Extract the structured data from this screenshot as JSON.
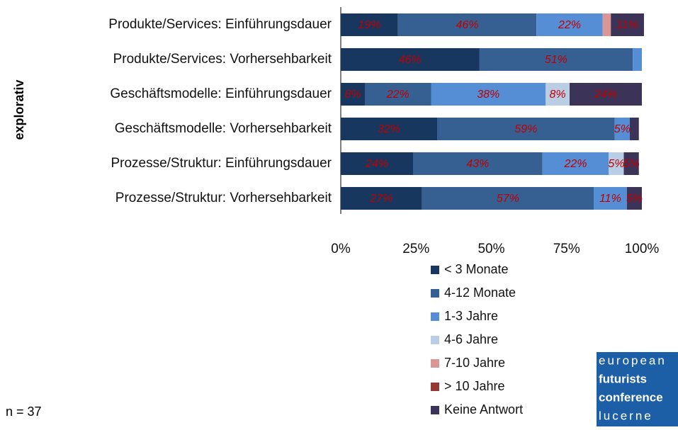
{
  "chart_data": {
    "type": "stacked-barh",
    "categories": [
      "Produkte/Services: Einführungsdauer",
      "Produkte/Services: Vorhersehbarkeit",
      "Geschäftsmodelle: Einführungsdauer",
      "Geschäftsmodelle: Vorhersehbarkeit",
      "Prozesse/Struktur: Einführungsdauer",
      "Prozesse/Struktur: Vorhersehbarkeit"
    ],
    "ylabel": "explorativ",
    "series": [
      {
        "name": "< 3 Monate",
        "color": "#17375e",
        "values": [
          19,
          46,
          8,
          32,
          24,
          27
        ],
        "value_labels": [
          "19%",
          "46%",
          "8%",
          "32%",
          "24%",
          "27%"
        ]
      },
      {
        "name": "4-12 Monate",
        "color": "#376092",
        "values": [
          46,
          51,
          22,
          59,
          43,
          57
        ],
        "value_labels": [
          "46%",
          "51%",
          "22%",
          "59%",
          "43%",
          "57%"
        ]
      },
      {
        "name": "1-3 Jahre",
        "color": "#558ed5",
        "values": [
          22,
          3,
          38,
          5,
          22,
          11
        ],
        "value_labels": [
          "22%",
          null,
          "38%",
          "5%",
          "22%",
          "11%"
        ]
      },
      {
        "name": "4-6 Jahre",
        "color": "#b9cde5",
        "values": [
          0,
          0,
          8,
          0,
          5,
          0
        ],
        "value_labels": [
          null,
          null,
          "8%",
          null,
          "5%",
          null
        ]
      },
      {
        "name": "7-10 Jahre",
        "color": "#d99694",
        "values": [
          2.7,
          0,
          0,
          0,
          0,
          0
        ],
        "value_labels": [
          null,
          null,
          null,
          null,
          null,
          null
        ]
      },
      {
        "name": "> 10 Jahre",
        "color": "#953735",
        "values": [
          0,
          0,
          0,
          0,
          0,
          0
        ],
        "value_labels": [
          null,
          null,
          null,
          null,
          null,
          null
        ]
      },
      {
        "name": "Keine Antwort",
        "color": "#3b3458",
        "values": [
          11,
          0,
          24,
          3,
          5,
          5
        ],
        "value_labels": [
          "11%",
          null,
          "24%",
          null,
          "5%",
          "5%"
        ]
      }
    ],
    "xlim": [
      0,
      100
    ],
    "xticks": [
      {
        "value": 0,
        "label": "0%"
      },
      {
        "value": 25,
        "label": "25%"
      },
      {
        "value": 50,
        "label": "50%"
      },
      {
        "value": 75,
        "label": "75%"
      },
      {
        "value": 100,
        "label": "100%"
      }
    ],
    "note": "n = 37"
  },
  "logo": [
    "european",
    "futurists",
    "conference",
    "lucerne"
  ]
}
